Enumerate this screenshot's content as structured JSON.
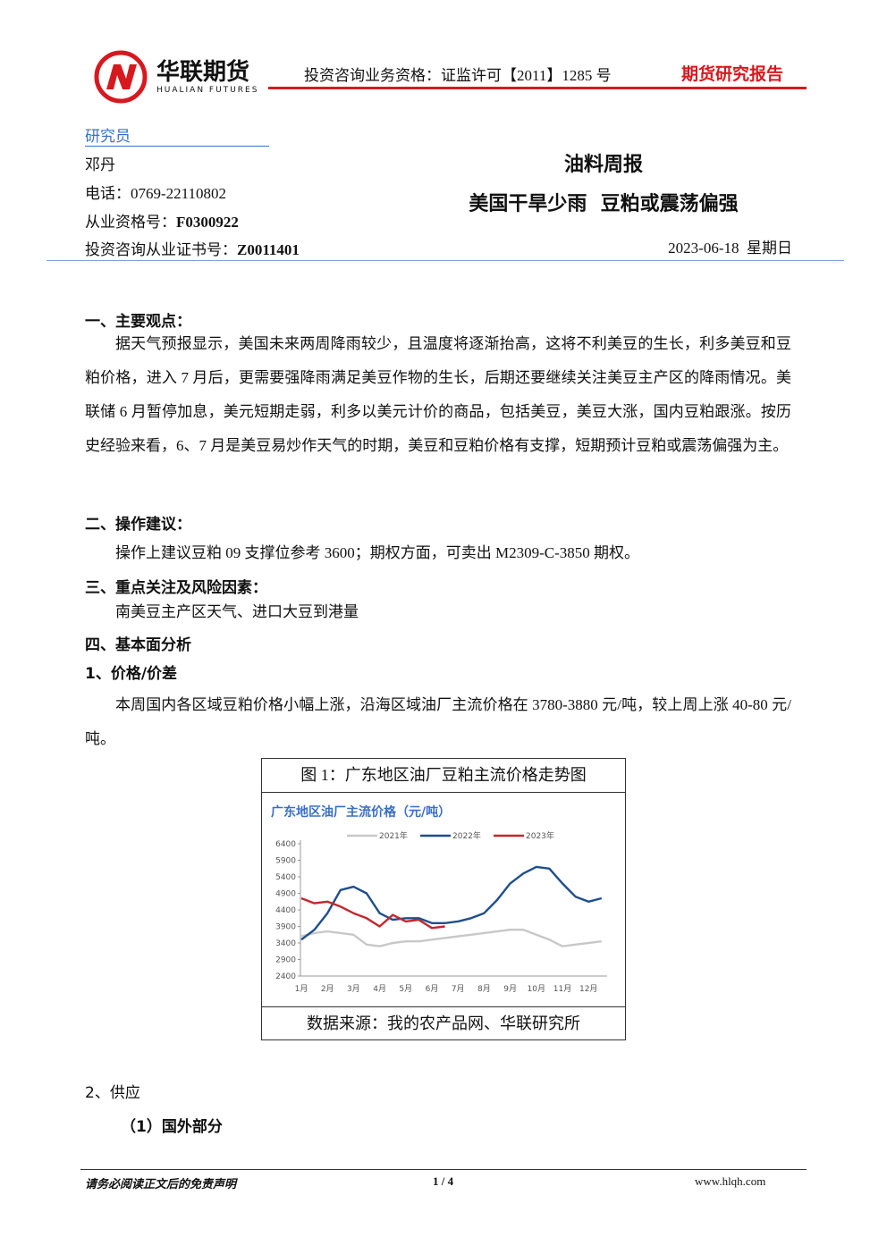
{
  "header": {
    "logo_cn": "华联期货",
    "logo_en": "HUALIAN FUTURES",
    "license": "投资咨询业务资格：证监许可【2011】1285 号",
    "report_type": "期货研究报告"
  },
  "researcher": {
    "heading": "研究员",
    "name": "邓丹",
    "phone": "电话：0769-22110802",
    "qual_label": "从业资格号：",
    "qual": "F0300922",
    "cert_label": "投资咨询从业证书号：",
    "cert": "Z0011401"
  },
  "report": {
    "category": "油料周报",
    "title": "美国干旱少雨  豆粕或震荡偏强",
    "date": "2023-06-18  星期日"
  },
  "sections": [
    {
      "heading": "一、主要观点：",
      "paragraph": "据天气预报显示，美国未来两周降雨较少，且温度将逐渐抬高，这将不利美豆的生长，利多美豆和豆粕价格，进入 7 月后，更需要强降雨满足美豆作物的生长，后期还要继续关注美豆主产区的降雨情况。美联储 6 月暂停加息，美元短期走弱，利多以美元计价的商品，包括美豆，美豆大涨，国内豆粕跟涨。按历史经验来看，6、7 月是美豆易炒作天气的时期，美豆和豆粕价格有支撑，短期预计豆粕或震荡偏强为主。"
    },
    {
      "heading": "二、操作建议：",
      "paragraph": "操作上建议豆粕 09 支撑位参考 3600；期权方面，可卖出 M2309-C-3850 期权。"
    },
    {
      "heading": "三、重点关注及风险因素：",
      "paragraph": "南美豆主产区天气、进口大豆到港量"
    },
    {
      "heading": "四、基本面分析"
    },
    {
      "heading": "1、价格/价差",
      "paragraph": "本周国内各区域豆粕价格小幅上涨，沿海区域油厂主流价格在 3780-3880 元/吨，较上周上涨 40-80 元/吨。"
    }
  ],
  "figure": {
    "caption": "图 1：广东地区油厂豆粕主流价格走势图",
    "source": "数据来源：我的农产品网、华联研究所",
    "chart_data": {
      "type": "line",
      "title": "广东地区油厂主流价格（元/吨）",
      "categories": [
        "1月",
        null,
        "2月",
        null,
        "3月",
        null,
        "4月",
        null,
        "5月",
        null,
        "6月",
        null,
        "7月",
        null,
        "8月",
        null,
        "9月",
        null,
        "10月",
        null,
        "11月",
        null,
        "12月",
        null
      ],
      "series": [
        {
          "name": "2021年",
          "color": "#c8c8c8",
          "values": [
            3600,
            3700,
            3750,
            3700,
            3650,
            3350,
            3300,
            3400,
            3450,
            3450,
            3500,
            3550,
            3600,
            3650,
            3700,
            3750,
            3800,
            3800,
            3650,
            3500,
            3300,
            3350,
            3400,
            3450
          ]
        },
        {
          "name": "2022年",
          "color": "#1f4e8c",
          "values": [
            3500,
            3800,
            4300,
            5000,
            5100,
            4900,
            4300,
            4100,
            4150,
            4150,
            4000,
            4000,
            4050,
            4150,
            4300,
            4700,
            5200,
            5500,
            5700,
            5650,
            5200,
            4800,
            4650,
            4750
          ]
        },
        {
          "name": "2023年",
          "color": "#c0282d",
          "values": [
            4750,
            4600,
            4650,
            4500,
            4300,
            4150,
            3900,
            4250,
            4050,
            4100,
            3850,
            3900,
            null,
            null,
            null,
            null,
            null,
            null,
            null,
            null,
            null,
            null,
            null,
            null
          ]
        }
      ],
      "ylim": [
        2400,
        6400
      ],
      "yticks": [
        2400,
        2900,
        3400,
        3900,
        4400,
        4900,
        5400,
        5900,
        6400
      ]
    }
  },
  "supply": {
    "heading": "2、供应",
    "subheading": "（1）国外部分"
  },
  "footer": {
    "disclaimer": "请务必阅读正文后的免责声明",
    "page": "1 / 4",
    "site": "www.hlqh.com"
  }
}
